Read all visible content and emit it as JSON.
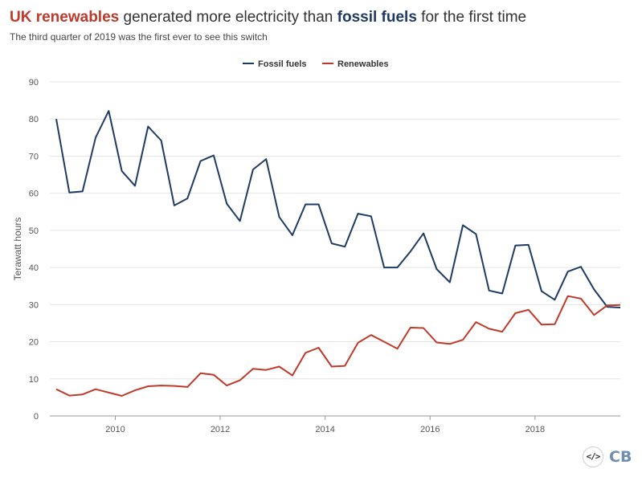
{
  "header": {
    "title_part1": "UK renewables",
    "title_part2": " generated more electricity than ",
    "title_part3": "fossil fuels",
    "title_part4": " for the first time",
    "subtitle": "The third quarter of 2019 was the first ever to see this switch"
  },
  "colors": {
    "fossil": "#1f3b64",
    "renewables": "#bf3a2b",
    "gridline": "#e5e5e5",
    "logo": "#6f8fb4"
  },
  "footer": {
    "embed_icon": "code-icon",
    "embed_glyph": "</>",
    "logo_text": "CB"
  },
  "chart_data": {
    "type": "line",
    "title": "",
    "xlabel": "",
    "ylabel": "Terawatt hours",
    "ylim": [
      0,
      90
    ],
    "yticks": [
      0,
      10,
      20,
      30,
      40,
      50,
      60,
      70,
      80,
      90
    ],
    "xlim": [
      2008.875,
      2019.625
    ],
    "xticks": [
      2010,
      2012,
      2014,
      2016,
      2018
    ],
    "grid": true,
    "legend_position": "top-center",
    "x": [
      2008.875,
      2009.125,
      2009.375,
      2009.625,
      2009.875,
      2010.125,
      2010.375,
      2010.625,
      2010.875,
      2011.125,
      2011.375,
      2011.625,
      2011.875,
      2012.125,
      2012.375,
      2012.625,
      2012.875,
      2013.125,
      2013.375,
      2013.625,
      2013.875,
      2014.125,
      2014.375,
      2014.625,
      2014.875,
      2015.125,
      2015.375,
      2015.625,
      2015.875,
      2016.125,
      2016.375,
      2016.625,
      2016.875,
      2017.125,
      2017.375,
      2017.625,
      2017.875,
      2018.125,
      2018.375,
      2018.625,
      2018.875,
      2019.125,
      2019.375,
      2019.625
    ],
    "series": [
      {
        "name": "Fossil fuels",
        "color": "#1f3b64",
        "values": [
          80.0,
          60.2,
          60.5,
          75.0,
          82.2,
          66.0,
          62.0,
          78.0,
          74.2,
          56.7,
          58.6,
          68.7,
          70.2,
          57.2,
          52.5,
          66.4,
          69.2,
          53.6,
          48.7,
          57.0,
          57.0,
          46.5,
          45.6,
          54.5,
          53.8,
          40.0,
          40.0,
          44.3,
          49.2,
          39.6,
          36.0,
          51.4,
          49.0,
          33.8,
          33.0,
          45.9,
          46.1,
          33.6,
          31.3,
          38.9,
          40.2,
          34.1,
          29.4,
          29.2
        ]
      },
      {
        "name": "Renewables",
        "color": "#bf3a2b",
        "values": [
          7.2,
          5.5,
          5.8,
          7.2,
          6.3,
          5.4,
          6.9,
          8.0,
          8.2,
          8.1,
          7.8,
          11.5,
          11.1,
          8.2,
          9.6,
          12.7,
          12.4,
          13.3,
          10.9,
          17.0,
          18.4,
          13.3,
          13.5,
          19.7,
          21.8,
          20.0,
          18.1,
          23.8,
          23.7,
          19.8,
          19.4,
          20.5,
          25.3,
          23.5,
          22.7,
          27.7,
          28.6,
          24.6,
          24.7,
          32.3,
          31.6,
          27.2,
          29.8,
          29.9
        ]
      }
    ]
  }
}
